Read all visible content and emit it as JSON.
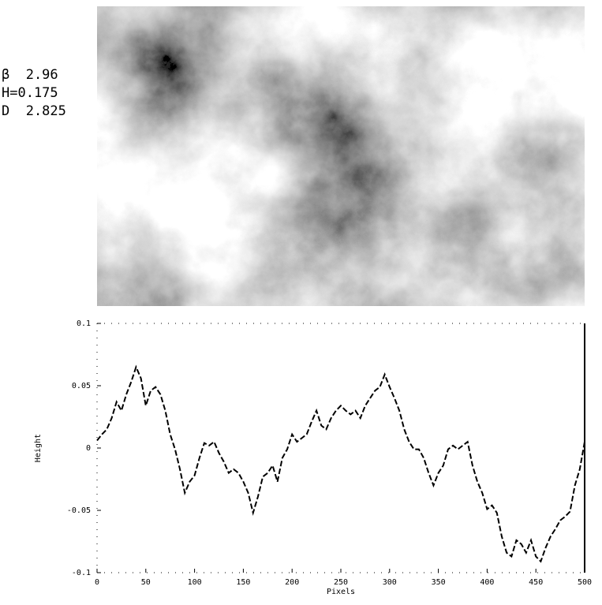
{
  "image_panel": {
    "parameters": [
      "β  2.96",
      "H=0.175",
      "D  2.825"
    ]
  },
  "chart_data": {
    "type": "line",
    "xlabel": "Pixels",
    "ylabel": "Height",
    "xlim": [
      0,
      500
    ],
    "xticks": [
      0,
      50,
      100,
      150,
      200,
      250,
      300,
      350,
      400,
      450,
      500
    ],
    "ylim": [
      -0.1,
      0.1
    ],
    "yticks": [
      -0.1,
      -0.05,
      0,
      0.05,
      0.1
    ],
    "x": [
      0,
      5,
      10,
      15,
      20,
      25,
      30,
      35,
      40,
      45,
      50,
      55,
      60,
      65,
      70,
      75,
      80,
      85,
      90,
      95,
      100,
      105,
      110,
      115,
      120,
      125,
      130,
      135,
      140,
      145,
      150,
      155,
      160,
      165,
      170,
      175,
      180,
      185,
      190,
      195,
      200,
      205,
      210,
      215,
      220,
      225,
      230,
      235,
      240,
      245,
      250,
      255,
      260,
      265,
      270,
      275,
      280,
      285,
      290,
      295,
      300,
      305,
      310,
      315,
      320,
      325,
      330,
      335,
      340,
      345,
      350,
      355,
      360,
      365,
      370,
      375,
      380,
      385,
      390,
      395,
      400,
      405,
      410,
      415,
      420,
      425,
      430,
      435,
      440,
      445,
      450,
      455,
      460,
      465,
      470,
      475,
      480,
      485,
      490,
      495,
      500
    ],
    "series": [
      {
        "color": "#000000",
        "values": [
          0.006,
          0.011,
          0.015,
          0.024,
          0.037,
          0.03,
          0.043,
          0.053,
          0.065,
          0.056,
          0.034,
          0.046,
          0.049,
          0.043,
          0.03,
          0.011,
          -0.001,
          -0.017,
          -0.036,
          -0.027,
          -0.022,
          -0.008,
          0.004,
          0.002,
          0.005,
          -0.004,
          -0.011,
          -0.02,
          -0.017,
          -0.02,
          -0.027,
          -0.036,
          -0.052,
          -0.039,
          -0.023,
          -0.02,
          -0.014,
          -0.027,
          -0.008,
          -0.001,
          0.011,
          0.005,
          0.008,
          0.011,
          0.021,
          0.03,
          0.018,
          0.015,
          0.024,
          0.03,
          0.034,
          0.03,
          0.027,
          0.03,
          0.024,
          0.034,
          0.04,
          0.046,
          0.049,
          0.059,
          0.049,
          0.04,
          0.03,
          0.015,
          0.005,
          -0.001,
          -0.001,
          -0.008,
          -0.02,
          -0.03,
          -0.02,
          -0.014,
          -0.001,
          0.002,
          -0.001,
          0.002,
          0.005,
          -0.014,
          -0.027,
          -0.036,
          -0.049,
          -0.046,
          -0.052,
          -0.071,
          -0.084,
          -0.087,
          -0.074,
          -0.077,
          -0.084,
          -0.074,
          -0.087,
          -0.091,
          -0.08,
          -0.071,
          -0.065,
          -0.058,
          -0.055,
          -0.051,
          -0.03,
          -0.017,
          0.005
        ]
      }
    ]
  }
}
